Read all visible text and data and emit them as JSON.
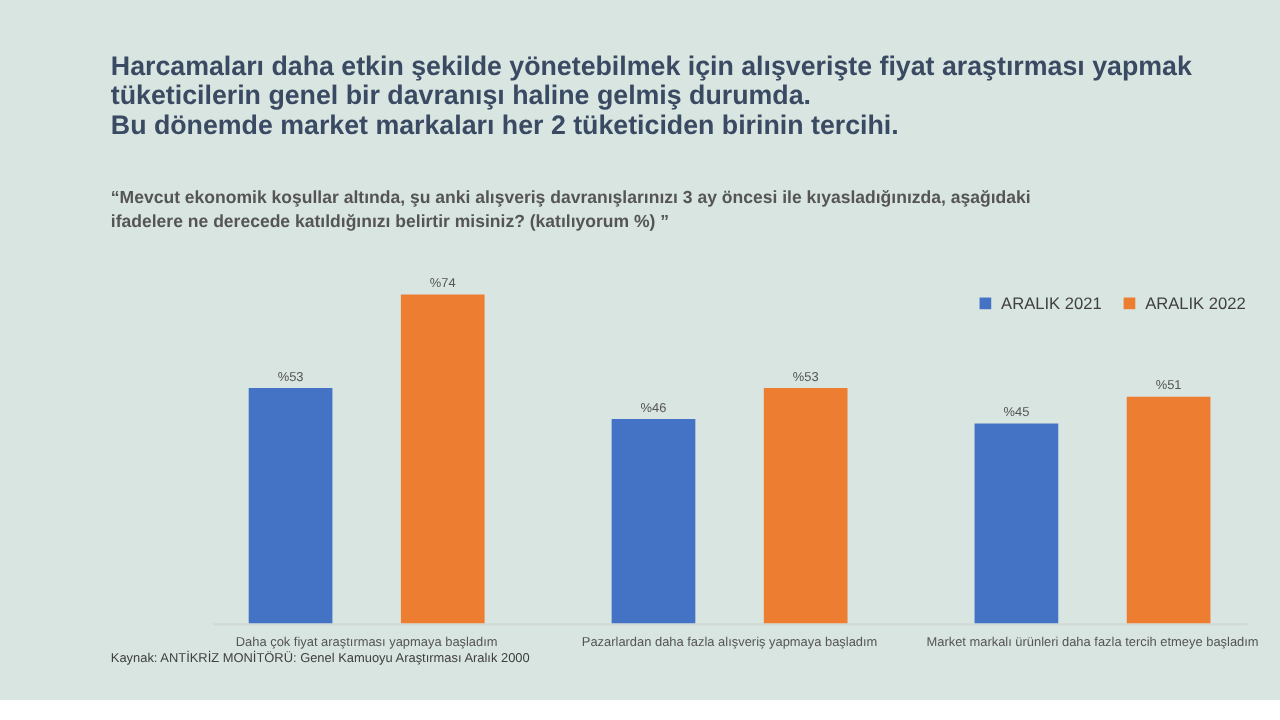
{
  "chart_data": {
    "type": "bar",
    "title": "Harcamaları daha etkin şekilde yönetebilmek için alışverişte fiyat araştırması yapmak\ntüketicilerin genel bir davranışı haline gelmiş durumda.\n Bu dönemde market markaları her 2 tüketiciden birinin tercihi.",
    "subtitle": "“Mevcut ekonomik koşullar altında, şu anki alışveriş davranışlarınızı 3 ay öncesi ile kıyasladığınızda, aşağıdaki\nifadelere ne derecede katıldığınızı belirtir misiniz? (katılıyorum %) ”",
    "categories": [
      "Daha çok fiyat araştırması yapmaya başladım",
      "Pazarlardan daha fazla alışveriş yapmaya başladım",
      "Market markalı ürünleri  daha fazla tercih etmeye başladım"
    ],
    "series": [
      {
        "name": "ARALIK 2021",
        "color": "#4472c4",
        "values": [
          53,
          46,
          45
        ],
        "value_labels": [
          "%53",
          "%46",
          "%45"
        ]
      },
      {
        "name": "ARALIK 2022",
        "color": "#ed7d31",
        "values": [
          74,
          53,
          51
        ],
        "value_labels": [
          "%74",
          "%53",
          "%51"
        ]
      }
    ],
    "relative": false,
    "legend": "top right",
    "grid": false,
    "annotations": [
      "Kaynak: ANTİKRİZ MONİTÖRÜ: Genel Kamuoyu Araştırması Aralık 2000"
    ]
  }
}
